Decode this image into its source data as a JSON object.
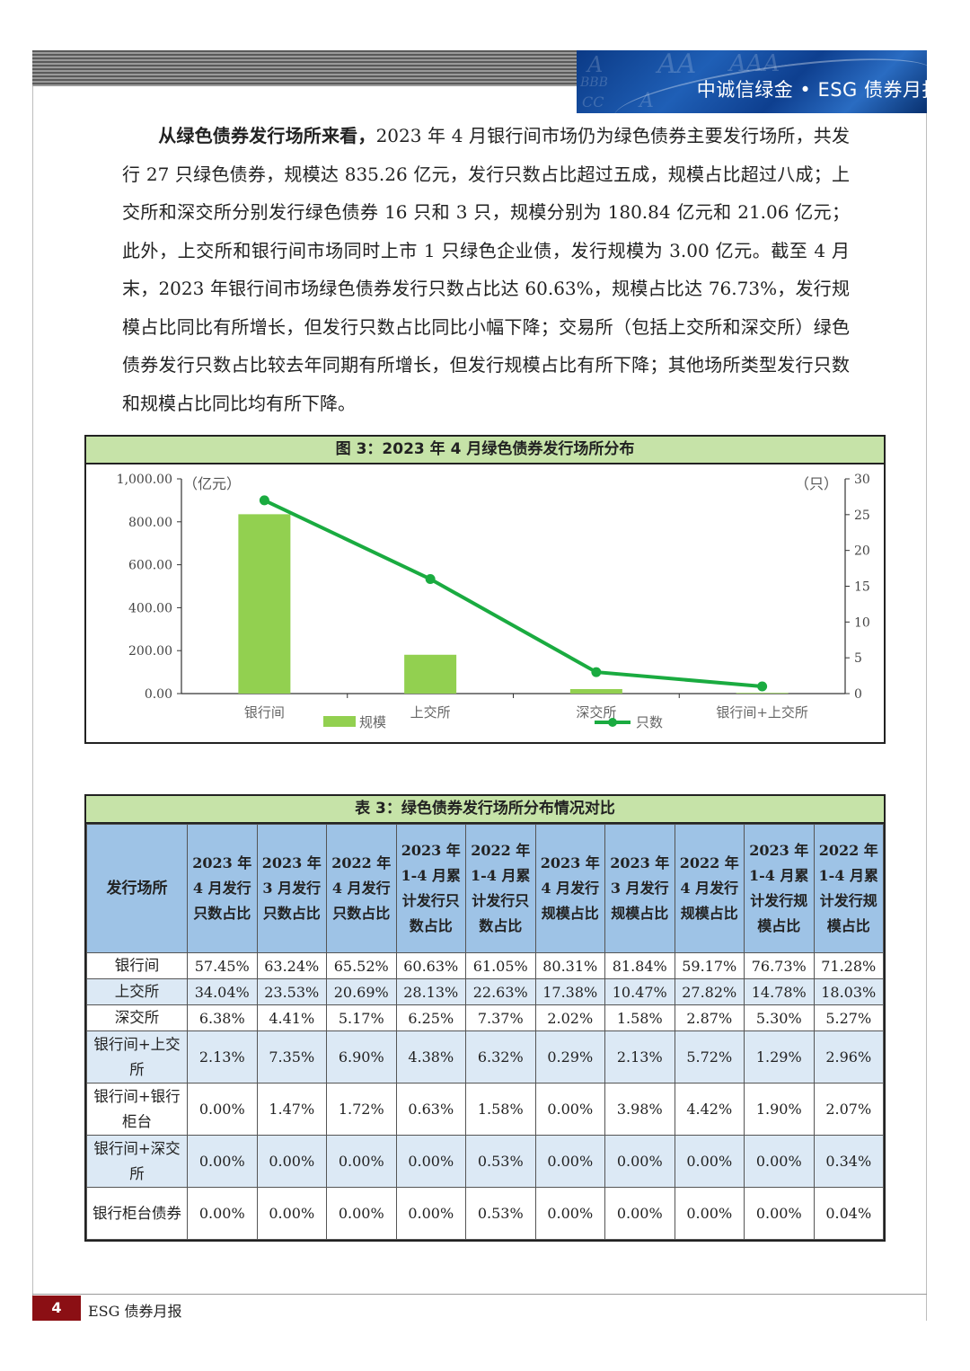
{
  "header": {
    "title": "中诚信绿金 • ESG 债券月报",
    "banner_letters": [
      "A",
      "AA",
      "AAA",
      "BBB",
      "CC",
      "A"
    ]
  },
  "paragraph": {
    "lead": "从绿色债券发行场所来看，",
    "body": "2023 年 4 月银行间市场仍为绿色债券主要发行场所，共发行 27 只绿色债券，规模达 835.26 亿元，发行只数占比超过五成，规模占比超过八成；上交所和深交所分别发行绿色债券 16 只和 3 只，规模分别为 180.84 亿元和 21.06 亿元；此外，上交所和银行间市场同时上市 1 只绿色企业债，发行规模为 3.00 亿元。截至 4 月末，2023 年银行间市场绿色债券发行只数占比达 60.63%，规模占比达 76.73%，发行规模占比同比有所增长，但发行只数占比同比小幅下降；交易所（包括上交所和深交所）绿色债券发行只数占比较去年同期有所增长，但发行规模占比有所下降；其他场所类型发行只数和规模占比同比均有所下降。"
  },
  "figure": {
    "title": "图 3：2023 年 4 月绿色债券发行场所分布"
  },
  "chart_data": {
    "type": "bar",
    "categories": [
      "银行间",
      "上交所",
      "深交所",
      "银行间+上交所"
    ],
    "series": [
      {
        "name": "规模",
        "type": "bar",
        "axis": "left",
        "values": [
          835.26,
          180.84,
          21.06,
          3.0
        ],
        "color": "#92d050"
      },
      {
        "name": "只数",
        "type": "line",
        "axis": "right",
        "values": [
          27,
          16,
          3,
          1
        ],
        "color": "#1aab40"
      }
    ],
    "left_axis": {
      "unit": "（亿元）",
      "min": 0,
      "max": 1000,
      "ticks": [
        "0.00",
        "200.00",
        "400.00",
        "600.00",
        "800.00",
        "1,000.00"
      ]
    },
    "right_axis": {
      "unit": "（只）",
      "min": 0,
      "max": 30,
      "ticks": [
        "0",
        "5",
        "10",
        "15",
        "20",
        "25",
        "30"
      ]
    },
    "legend_position": "bottom",
    "grid": false
  },
  "table": {
    "title": "表 3：绿色债券发行场所分布情况对比",
    "headers": [
      "发行场所",
      "2023 年 4 月发行只数占比",
      "2023 年 3 月发行只数占比",
      "2022 年 4 月发行只数占比",
      "2023 年 1-4 月累计发行只数占比",
      "2022 年 1-4 月累计发行只数占比",
      "2023 年 4 月发行规模占比",
      "2023 年 3 月发行规模占比",
      "2022 年 4 月发行规模占比",
      "2023 年 1-4 月累计发行规模占比",
      "2022 年 1-4 月累计发行规模占比"
    ],
    "rows": [
      [
        "银行间",
        "57.45%",
        "63.24%",
        "65.52%",
        "60.63%",
        "61.05%",
        "80.31%",
        "81.84%",
        "59.17%",
        "76.73%",
        "71.28%"
      ],
      [
        "上交所",
        "34.04%",
        "23.53%",
        "20.69%",
        "28.13%",
        "22.63%",
        "17.38%",
        "10.47%",
        "27.82%",
        "14.78%",
        "18.03%"
      ],
      [
        "深交所",
        "6.38%",
        "4.41%",
        "5.17%",
        "6.25%",
        "7.37%",
        "2.02%",
        "1.58%",
        "2.87%",
        "5.30%",
        "5.27%"
      ],
      [
        "银行间+上交所",
        "2.13%",
        "7.35%",
        "6.90%",
        "4.38%",
        "6.32%",
        "0.29%",
        "2.13%",
        "5.72%",
        "1.29%",
        "2.96%"
      ],
      [
        "银行间+银行柜台",
        "0.00%",
        "1.47%",
        "1.72%",
        "0.63%",
        "1.58%",
        "0.00%",
        "3.98%",
        "4.42%",
        "1.90%",
        "2.07%"
      ],
      [
        "银行间+深交所",
        "0.00%",
        "0.00%",
        "0.00%",
        "0.00%",
        "0.53%",
        "0.00%",
        "0.00%",
        "0.00%",
        "0.00%",
        "0.34%"
      ],
      [
        "银行柜台债券",
        "0.00%",
        "0.00%",
        "0.00%",
        "0.00%",
        "0.53%",
        "0.00%",
        "0.00%",
        "0.00%",
        "0.00%",
        "0.04%"
      ]
    ]
  },
  "footer": {
    "page_number": "4",
    "report_name": "ESG 债券月报"
  }
}
